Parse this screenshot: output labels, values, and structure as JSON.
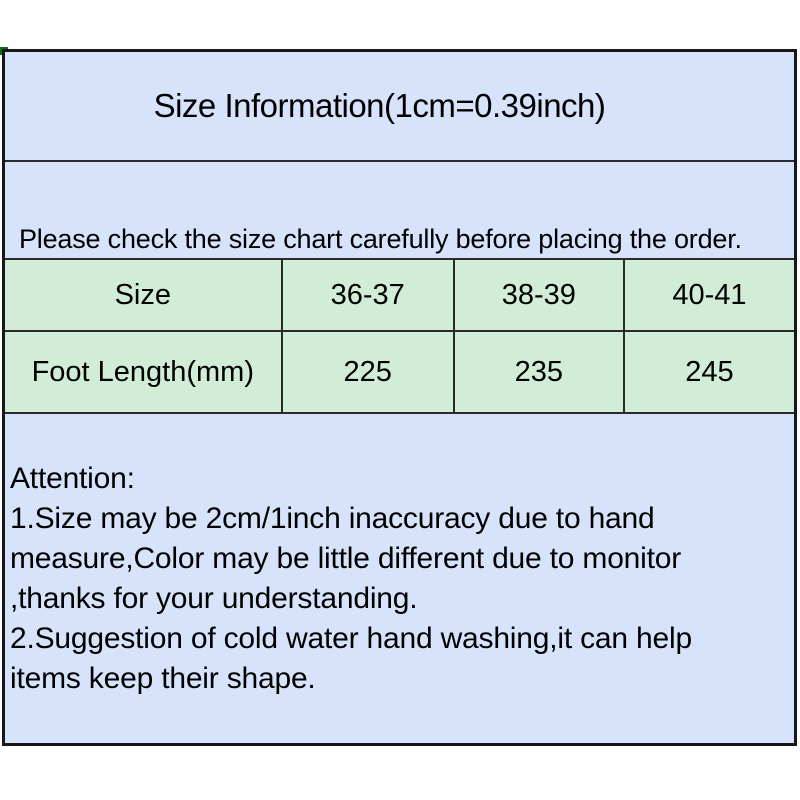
{
  "colors": {
    "page_background": "#ffffff",
    "info_panel_blue": "#d6e3fa",
    "table_green": "#d1edd7",
    "border_dark": "#171717",
    "divider_dark": "#2a2a2a",
    "corner_mark_green": "#0b6b10",
    "text": "#000000"
  },
  "header": {
    "title": "Size Information(1cm=0.39inch)"
  },
  "notice": {
    "text": "Please check the size chart carefully before placing the order."
  },
  "size_table": {
    "header_row": [
      "Size",
      "36-37",
      "38-39",
      "40-41"
    ],
    "data_row": [
      "Foot Length(mm)",
      "225",
      "235",
      "245"
    ]
  },
  "attention": {
    "lines": [
      "Attention:",
      "1.Size may be 2cm/1inch inaccuracy due to hand",
      "measure,Color may be little different due to monitor",
      ",thanks for your understanding.",
      "2.Suggestion of cold water hand washing,it can help",
      "items keep their shape."
    ]
  }
}
